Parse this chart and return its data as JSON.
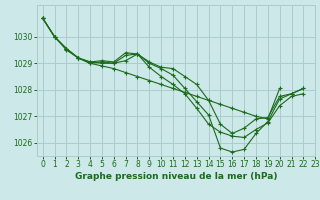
{
  "title": "Graphe pression niveau de la mer (hPa)",
  "bg_color": "#cce8e8",
  "line_color": "#1a6b1a",
  "grid_color": "#aacccc",
  "tick_color": "#1a6b1a",
  "xlim": [
    -0.5,
    23
  ],
  "ylim": [
    1025.5,
    1031.2
  ],
  "yticks": [
    1026,
    1027,
    1028,
    1029,
    1030
  ],
  "xticks": [
    0,
    1,
    2,
    3,
    4,
    5,
    6,
    7,
    8,
    9,
    10,
    11,
    12,
    13,
    14,
    15,
    16,
    17,
    18,
    19,
    20,
    21,
    22,
    23
  ],
  "series": [
    {
      "x": [
        0,
        1,
        2,
        3,
        4,
        5,
        6,
        7,
        8,
        9,
        10,
        11,
        12,
        13,
        14,
        15,
        16,
        17,
        18,
        19,
        20,
        21,
        22
      ],
      "y": [
        1030.7,
        1030.0,
        1029.55,
        1029.2,
        1029.0,
        1029.05,
        1029.0,
        1029.3,
        1029.35,
        1029.0,
        1028.8,
        1028.55,
        1028.05,
        1027.55,
        1027.05,
        1025.8,
        1025.65,
        1025.75,
        1026.35,
        1026.8,
        1027.65,
        1027.85,
        1028.05
      ]
    },
    {
      "x": [
        0,
        1,
        2,
        3,
        4,
        5,
        6,
        7,
        8,
        9,
        10,
        11,
        12,
        13,
        14,
        15,
        16,
        17,
        18,
        19,
        20,
        21,
        22
      ],
      "y": [
        1030.7,
        1030.0,
        1029.55,
        1029.2,
        1029.05,
        1029.1,
        1029.05,
        1029.4,
        1029.35,
        1029.05,
        1028.85,
        1028.8,
        1028.5,
        1028.2,
        1027.6,
        1026.7,
        1026.35,
        1026.55,
        1026.9,
        1026.95,
        1027.75,
        1027.85,
        1028.05
      ]
    },
    {
      "x": [
        0,
        1,
        2,
        3,
        4,
        5,
        6,
        7,
        8,
        9,
        10,
        11,
        12,
        13,
        14,
        15,
        16,
        17,
        18,
        19,
        20,
        21,
        22
      ],
      "y": [
        1030.7,
        1030.0,
        1029.55,
        1029.2,
        1029.05,
        1029.0,
        1029.0,
        1029.1,
        1029.35,
        1028.85,
        1028.5,
        1028.2,
        1027.85,
        1027.3,
        1026.7,
        1026.4,
        1026.25,
        1026.2,
        1026.5,
        1026.75,
        1027.4,
        1027.75,
        1027.85
      ]
    },
    {
      "x": [
        0,
        1,
        2,
        3,
        4,
        5,
        6,
        7,
        8,
        9,
        10,
        11,
        12,
        13,
        14,
        15,
        16,
        17,
        18,
        19,
        20
      ],
      "y": [
        1030.7,
        1030.0,
        1029.5,
        1029.2,
        1029.0,
        1028.9,
        1028.8,
        1028.65,
        1028.5,
        1028.35,
        1028.2,
        1028.05,
        1027.9,
        1027.75,
        1027.6,
        1027.45,
        1027.3,
        1027.15,
        1027.0,
        1026.9,
        1028.05
      ]
    }
  ],
  "title_fontsize": 6.5,
  "tick_fontsize": 5.5
}
